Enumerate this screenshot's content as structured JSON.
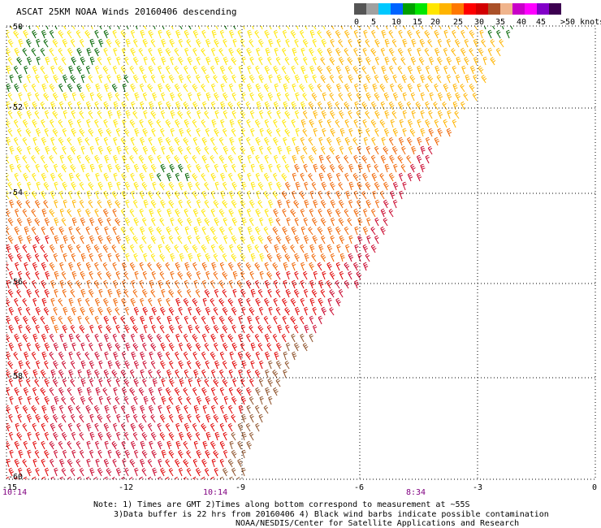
{
  "title": "ASCAT 25KM NOAA Winds 20160406 descending",
  "legend": {
    "colors": [
      "#555555",
      "#a0a0a0",
      "#00c8ff",
      "#0064ff",
      "#00a000",
      "#00e600",
      "#ffe600",
      "#ffb400",
      "#ff7800",
      "#ff0000",
      "#d20000",
      "#aa5028",
      "#f0b48c",
      "#c800c8",
      "#ff00ff",
      "#8200c8",
      "#3c0050"
    ],
    "labels": [
      "0",
      "5",
      "10",
      "15",
      "20",
      "25",
      "30",
      "35",
      "40",
      "45",
      ">50 knots"
    ]
  },
  "map": {
    "lon_range": [
      -15,
      0
    ],
    "lat_range": [
      -60,
      -50
    ],
    "lon_labels": [
      "-15",
      "-12",
      "-9",
      "-6",
      "-3",
      "0"
    ],
    "lat_labels": [
      "-50",
      "-52",
      "-54",
      "-56",
      "-58",
      "-60"
    ],
    "times": [
      "10:14",
      "10:14",
      "8:34"
    ],
    "wind_barbs": {
      "description_colors": {
        "dark_green": "#006400",
        "yellow": "#ffe600",
        "light_orange": "#ffb400",
        "orange": "#f06400",
        "red": "#e00000",
        "crimson": "#c80028",
        "brown": "#8c5028"
      },
      "dominant_direction": "from north-northwest"
    }
  },
  "notes": {
    "line1": "Note: 1) Times are GMT 2)Times along bottom correspond to measurement at ~55S",
    "line2": "3)Data buffer is 22 hrs from 20160406 4) Black wind barbs indicate possible contamination",
    "line3": "NOAA/NESDIS/Center for Satellite Applications and Research"
  }
}
